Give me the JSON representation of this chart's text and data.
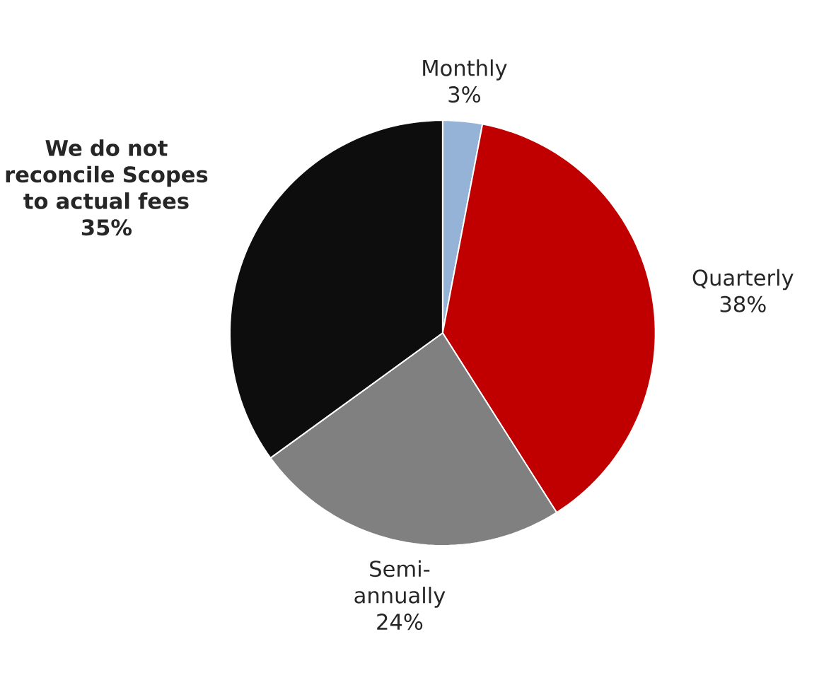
{
  "chart_data": {
    "type": "pie",
    "categories": [
      "Monthly",
      "Quarterly",
      "Semi-annually",
      "**We do not reconcile Scopes to actual fees**"
    ],
    "values": [
      3,
      38,
      24,
      35
    ],
    "colors": [
      "#95b3d7",
      "#c00000",
      "#808080",
      "#0d0d0d"
    ],
    "value_labels": [
      "3%",
      "38%",
      "24%",
      "**35%**"
    ]
  }
}
